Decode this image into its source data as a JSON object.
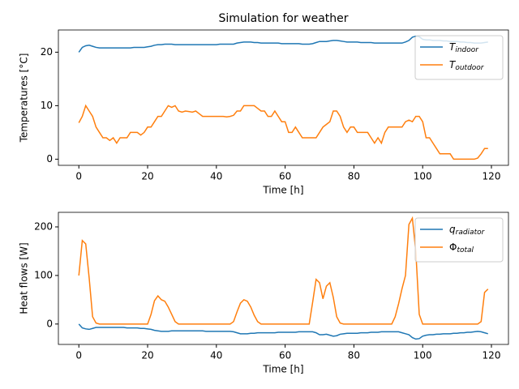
{
  "chart_data": [
    {
      "type": "line",
      "title": "Simulation for weather",
      "xlabel": "Time [h]",
      "ylabel": "Temperatures [°C]",
      "x": [
        0,
        1,
        2,
        3,
        4,
        5,
        6,
        7,
        8,
        9,
        10,
        11,
        12,
        13,
        14,
        15,
        16,
        17,
        18,
        19,
        20,
        21,
        22,
        23,
        24,
        25,
        26,
        27,
        28,
        29,
        30,
        31,
        32,
        33,
        34,
        35,
        36,
        37,
        38,
        39,
        40,
        41,
        42,
        43,
        44,
        45,
        46,
        47,
        48,
        49,
        50,
        51,
        52,
        53,
        54,
        55,
        56,
        57,
        58,
        59,
        60,
        61,
        62,
        63,
        64,
        65,
        66,
        67,
        68,
        69,
        70,
        71,
        72,
        73,
        74,
        75,
        76,
        77,
        78,
        79,
        80,
        81,
        82,
        83,
        84,
        85,
        86,
        87,
        88,
        89,
        90,
        91,
        92,
        93,
        94,
        95,
        96,
        97,
        98,
        99,
        100,
        101,
        102,
        103,
        104,
        105,
        106,
        107,
        108,
        109,
        110,
        111,
        112,
        113,
        114,
        115,
        116,
        117,
        118,
        119
      ],
      "series": [
        {
          "name": "Tindoor",
          "color": "#1f77b4",
          "values": [
            20,
            20.9,
            21.2,
            21.3,
            21.1,
            20.9,
            20.8,
            20.8,
            20.8,
            20.8,
            20.8,
            20.8,
            20.8,
            20.8,
            20.8,
            20.8,
            20.9,
            20.9,
            20.9,
            20.9,
            21,
            21.1,
            21.3,
            21.4,
            21.4,
            21.5,
            21.5,
            21.5,
            21.4,
            21.4,
            21.4,
            21.4,
            21.4,
            21.4,
            21.4,
            21.4,
            21.4,
            21.4,
            21.4,
            21.4,
            21.4,
            21.5,
            21.5,
            21.5,
            21.5,
            21.5,
            21.7,
            21.8,
            21.9,
            21.9,
            21.9,
            21.8,
            21.8,
            21.7,
            21.7,
            21.7,
            21.7,
            21.7,
            21.7,
            21.6,
            21.6,
            21.6,
            21.6,
            21.6,
            21.6,
            21.5,
            21.5,
            21.5,
            21.6,
            21.8,
            22,
            22,
            22,
            22.1,
            22.2,
            22.2,
            22.1,
            22,
            21.9,
            21.9,
            21.9,
            21.9,
            21.8,
            21.8,
            21.8,
            21.8,
            21.7,
            21.7,
            21.7,
            21.7,
            21.7,
            21.7,
            21.7,
            21.7,
            21.7,
            21.9,
            22.2,
            22.8,
            23,
            22.9,
            22.4,
            22.3,
            22.3,
            22.2,
            22.2,
            22.2,
            22.1,
            22.1,
            22,
            22,
            22,
            21.9,
            21.9,
            21.8,
            21.8,
            21.7,
            21.7,
            21.7,
            21.8,
            21.9
          ]
        },
        {
          "name": "Toutdoor",
          "color": "#ff7f0e",
          "values": [
            6.8,
            8,
            10,
            9,
            8,
            6,
            5,
            4,
            4,
            3.5,
            4,
            3,
            4,
            4,
            4,
            5,
            5,
            5,
            4.5,
            5,
            6,
            6,
            7,
            8,
            8,
            9,
            10,
            9.7,
            10,
            9,
            8.8,
            9,
            8.9,
            8.8,
            9,
            8.5,
            8,
            8,
            8,
            8,
            8,
            8,
            8,
            7.9,
            8,
            8.2,
            9,
            9,
            10,
            10,
            10,
            10,
            9.5,
            9,
            9,
            8,
            8,
            9,
            8,
            7,
            7,
            5,
            5,
            6,
            5,
            4,
            4,
            4,
            4,
            4,
            5,
            6,
            6.5,
            7,
            9,
            9,
            8,
            6,
            5,
            6,
            6,
            5,
            5,
            5,
            5,
            4,
            3,
            4,
            3,
            5,
            6,
            6,
            6,
            6,
            6,
            7,
            7.3,
            7,
            8,
            8,
            7,
            4,
            4,
            3,
            2,
            1,
            1,
            1,
            1,
            0,
            0,
            0,
            0,
            0,
            0,
            0,
            0.2,
            1,
            2,
            2
          ]
        }
      ],
      "xlim": [
        -5.95,
        124.95
      ],
      "xticks": [
        0,
        20,
        40,
        60,
        80,
        100,
        120
      ],
      "ylim": [
        -1.15,
        24.15
      ],
      "yticks": [
        0,
        10,
        20
      ],
      "legend": "upper right"
    },
    {
      "type": "line",
      "xlabel": "Time [h]",
      "ylabel": "Heat flows [W]",
      "x": [
        0,
        1,
        2,
        3,
        4,
        5,
        6,
        7,
        8,
        9,
        10,
        11,
        12,
        13,
        14,
        15,
        16,
        17,
        18,
        19,
        20,
        21,
        22,
        23,
        24,
        25,
        26,
        27,
        28,
        29,
        30,
        31,
        32,
        33,
        34,
        35,
        36,
        37,
        38,
        39,
        40,
        41,
        42,
        43,
        44,
        45,
        46,
        47,
        48,
        49,
        50,
        51,
        52,
        53,
        54,
        55,
        56,
        57,
        58,
        59,
        60,
        61,
        62,
        63,
        64,
        65,
        66,
        67,
        68,
        69,
        70,
        71,
        72,
        73,
        74,
        75,
        76,
        77,
        78,
        79,
        80,
        81,
        82,
        83,
        84,
        85,
        86,
        87,
        88,
        89,
        90,
        91,
        92,
        93,
        94,
        95,
        96,
        97,
        98,
        99,
        100,
        101,
        102,
        103,
        104,
        105,
        106,
        107,
        108,
        109,
        110,
        111,
        112,
        113,
        114,
        115,
        116,
        117,
        118,
        119
      ],
      "series": [
        {
          "name": "qradiator",
          "color": "#1f77b4",
          "values": [
            0,
            -8,
            -10,
            -11,
            -9,
            -7,
            -7,
            -7,
            -7,
            -7,
            -7,
            -7,
            -7,
            -7,
            -8,
            -8,
            -8,
            -8,
            -9,
            -9,
            -10,
            -11,
            -13,
            -14,
            -15,
            -15,
            -15,
            -14,
            -14,
            -14,
            -14,
            -14,
            -14,
            -14,
            -14,
            -14,
            -14,
            -15,
            -15,
            -15,
            -15,
            -15,
            -15,
            -15,
            -15,
            -16,
            -18,
            -20,
            -20,
            -20,
            -19,
            -19,
            -18,
            -18,
            -18,
            -18,
            -18,
            -18,
            -17,
            -17,
            -17,
            -17,
            -17,
            -17,
            -16,
            -16,
            -16,
            -16,
            -16,
            -18,
            -22,
            -22,
            -21,
            -23,
            -25,
            -24,
            -21,
            -20,
            -19,
            -19,
            -19,
            -19,
            -18,
            -18,
            -18,
            -17,
            -17,
            -17,
            -16,
            -16,
            -16,
            -16,
            -16,
            -16,
            -18,
            -20,
            -22,
            -28,
            -31,
            -30,
            -25,
            -23,
            -22,
            -22,
            -21,
            -21,
            -20,
            -20,
            -20,
            -19,
            -19,
            -18,
            -18,
            -17,
            -17,
            -16,
            -15,
            -16,
            -18,
            -20
          ]
        },
        {
          "name": "Φtotal",
          "color": "#ff7f0e",
          "values": [
            100,
            172,
            165,
            95,
            15,
            2,
            0,
            0,
            0,
            0,
            0,
            0,
            0,
            0,
            0,
            0,
            0,
            0,
            0,
            0,
            0,
            20,
            48,
            58,
            50,
            47,
            35,
            20,
            5,
            0,
            0,
            0,
            0,
            0,
            0,
            0,
            0,
            0,
            0,
            0,
            0,
            0,
            0,
            0,
            0,
            5,
            25,
            43,
            50,
            47,
            35,
            18,
            5,
            0,
            0,
            0,
            0,
            0,
            0,
            0,
            0,
            0,
            0,
            0,
            0,
            0,
            0,
            0,
            45,
            92,
            85,
            52,
            78,
            85,
            55,
            15,
            2,
            0,
            0,
            0,
            0,
            0,
            0,
            0,
            0,
            0,
            0,
            0,
            0,
            0,
            0,
            0,
            15,
            42,
            73,
            100,
            205,
            218,
            150,
            20,
            0,
            0,
            0,
            0,
            0,
            0,
            0,
            0,
            0,
            0,
            0,
            0,
            0,
            0,
            0,
            0,
            0,
            5,
            65,
            72
          ]
        }
      ],
      "xlim": [
        -5.95,
        124.95
      ],
      "xticks": [
        0,
        20,
        40,
        60,
        80,
        100,
        120
      ],
      "ylim": [
        -42,
        230
      ],
      "yticks": [
        0,
        100,
        200
      ],
      "legend": "upper right"
    }
  ]
}
